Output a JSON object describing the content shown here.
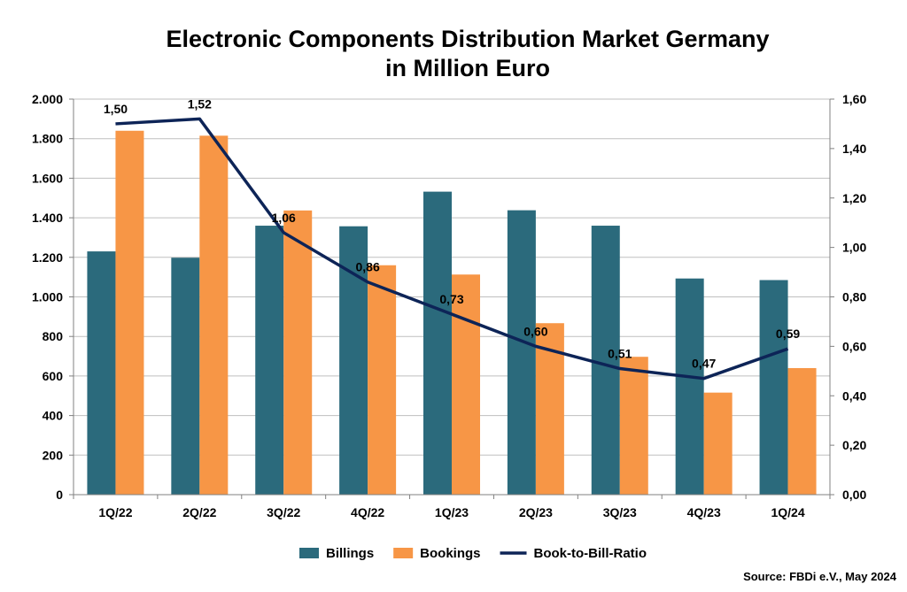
{
  "chart_data": {
    "type": "bar",
    "title": "Electronic Components Distribution Market Germany",
    "subtitle": "in Million Euro",
    "categories": [
      "1Q/22",
      "2Q/22",
      "3Q/22",
      "4Q/22",
      "1Q/23",
      "2Q/23",
      "3Q/23",
      "4Q/23",
      "1Q/24"
    ],
    "series": [
      {
        "name": "Billings",
        "kind": "bar",
        "axis": "left",
        "color": "#2b6a7c",
        "values": [
          1230,
          1198,
          1360,
          1357,
          1532,
          1438,
          1360,
          1093,
          1085
        ]
      },
      {
        "name": "Bookings",
        "kind": "bar",
        "axis": "left",
        "color": "#f79646",
        "values": [
          1840,
          1815,
          1437,
          1160,
          1113,
          867,
          697,
          516,
          640
        ]
      },
      {
        "name": "Book-to-Bill-Ratio",
        "kind": "line",
        "axis": "right",
        "color": "#0d2457",
        "values": [
          1.5,
          1.52,
          1.06,
          0.86,
          0.73,
          0.6,
          0.51,
          0.47,
          0.59
        ],
        "labels": [
          "1,50",
          "1,52",
          "1,06",
          "0,86",
          "0,73",
          "0,60",
          "0,51",
          "0,47",
          "0,59"
        ]
      }
    ],
    "y_left": {
      "range": [
        0,
        2000
      ],
      "ticks": [
        0,
        200,
        400,
        600,
        800,
        1000,
        1200,
        1400,
        1600,
        1800,
        2000
      ],
      "tick_labels": [
        "0",
        "200",
        "400",
        "600",
        "800",
        "1.000",
        "1.200",
        "1.400",
        "1.600",
        "1.800",
        "2.000"
      ]
    },
    "y_right": {
      "range": [
        0,
        1.6
      ],
      "ticks": [
        0,
        0.2,
        0.4,
        0.6,
        0.8,
        1.0,
        1.2,
        1.4,
        1.6
      ],
      "tick_labels": [
        "0,00",
        "0,20",
        "0,40",
        "0,60",
        "0,80",
        "1,00",
        "1,20",
        "1,40",
        "1,60"
      ]
    },
    "grid": true,
    "legend": {
      "position": "bottom-center"
    },
    "source": "Source: FBDi e.V., May 2024"
  }
}
